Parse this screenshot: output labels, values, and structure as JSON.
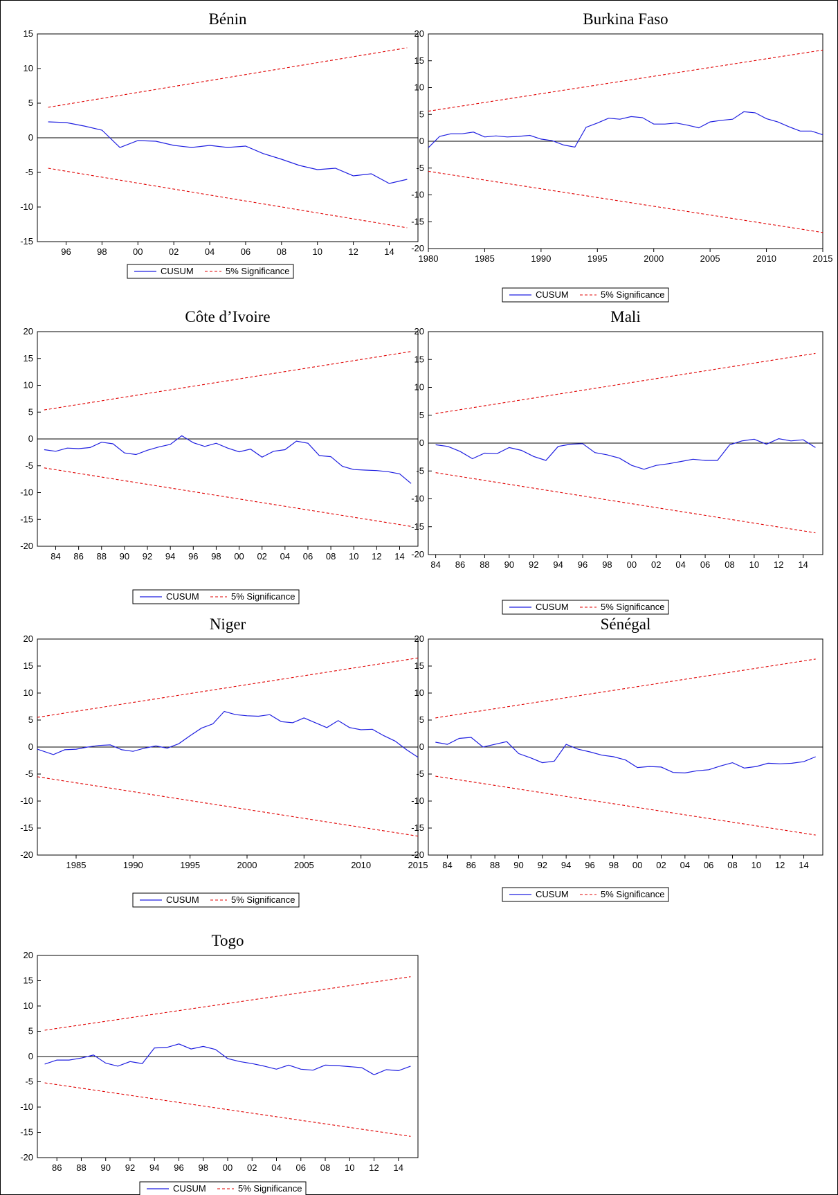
{
  "chart_data": [
    {
      "type": "line",
      "title": "Bénin",
      "x_tick_labels": [
        "96",
        "98",
        "00",
        "02",
        "04",
        "06",
        "08",
        "10",
        "12",
        "14"
      ],
      "x_tick_years": [
        1996,
        1998,
        2000,
        2002,
        2004,
        2006,
        2008,
        2010,
        2012,
        2014
      ],
      "xlim": [
        1994.4,
        2015.6
      ],
      "ylim": [
        -15,
        15
      ],
      "yticks": [
        -15,
        -10,
        -5,
        0,
        5,
        10,
        15
      ],
      "legend": [
        "CUSUM",
        "5% Significance"
      ],
      "legend_position": "bottom-center",
      "series": [
        {
          "name": "CUSUM",
          "color": "#1f1fe0",
          "x": [
            1995,
            1996,
            1997,
            1998,
            1999,
            2000,
            2001,
            2002,
            2003,
            2004,
            2005,
            2006,
            2007,
            2008,
            2009,
            2010,
            2011,
            2012,
            2013,
            2014,
            2015
          ],
          "y": [
            2.3,
            2.2,
            1.7,
            1.1,
            -1.4,
            -0.4,
            -0.5,
            -1.1,
            -1.4,
            -1.1,
            -1.4,
            -1.2,
            -2.3,
            -3.1,
            -4.0,
            -4.6,
            -4.4,
            -5.5,
            -5.2,
            -6.6,
            -6.0
          ]
        },
        {
          "name": "5% Significance",
          "color": "#e00000",
          "x": [
            1995,
            2015
          ],
          "y": [
            4.4,
            13.0
          ]
        },
        {
          "name": "5% Significance",
          "color": "#e00000",
          "x": [
            1995,
            2015
          ],
          "y": [
            -4.4,
            -13.0
          ]
        }
      ]
    },
    {
      "type": "line",
      "title": "Burkina Faso",
      "x_tick_labels": [
        "1980",
        "1985",
        "1990",
        "1995",
        "2000",
        "2005",
        "2010",
        "2015"
      ],
      "x_tick_years": [
        1980,
        1985,
        1990,
        1995,
        2000,
        2005,
        2010,
        2015
      ],
      "xlim": [
        1980,
        2015
      ],
      "ylim": [
        -20,
        20
      ],
      "yticks": [
        -20,
        -15,
        -10,
        -5,
        0,
        5,
        10,
        15,
        20
      ],
      "legend": [
        "CUSUM",
        "5% Significance"
      ],
      "legend_position": "bottom-center",
      "series": [
        {
          "name": "CUSUM",
          "color": "#1f1fe0",
          "x": [
            1980,
            1981,
            1982,
            1983,
            1984,
            1985,
            1986,
            1987,
            1988,
            1989,
            1990,
            1991,
            1992,
            1993,
            1994,
            1995,
            1996,
            1997,
            1998,
            1999,
            2000,
            2001,
            2002,
            2003,
            2004,
            2005,
            2006,
            2007,
            2008,
            2009,
            2010,
            2011,
            2012,
            2013,
            2014,
            2015
          ],
          "y": [
            -1.2,
            0.9,
            1.4,
            1.4,
            1.7,
            0.8,
            1.0,
            0.8,
            0.9,
            1.1,
            0.4,
            0.1,
            -0.7,
            -1.1,
            2.6,
            3.4,
            4.3,
            4.1,
            4.6,
            4.4,
            3.2,
            3.2,
            3.4,
            3.0,
            2.5,
            3.6,
            3.9,
            4.1,
            5.5,
            5.3,
            4.2,
            3.6,
            2.7,
            1.9,
            1.9,
            1.2
          ]
        },
        {
          "name": "5% Significance",
          "color": "#e00000",
          "x": [
            1980,
            2015
          ],
          "y": [
            5.6,
            17.0
          ]
        },
        {
          "name": "5% Significance",
          "color": "#e00000",
          "x": [
            1980,
            2015
          ],
          "y": [
            -5.6,
            -17.0
          ]
        }
      ]
    },
    {
      "type": "line",
      "title": "Côte d’Ivoire",
      "x_tick_labels": [
        "84",
        "86",
        "88",
        "90",
        "92",
        "94",
        "96",
        "98",
        "00",
        "02",
        "04",
        "06",
        "08",
        "10",
        "12",
        "14"
      ],
      "x_tick_years": [
        1984,
        1986,
        1988,
        1990,
        1992,
        1994,
        1996,
        1998,
        2000,
        2002,
        2004,
        2006,
        2008,
        2010,
        2012,
        2014
      ],
      "xlim": [
        1982.4,
        2015.6
      ],
      "ylim": [
        -20,
        20
      ],
      "yticks": [
        -20,
        -15,
        -10,
        -5,
        0,
        5,
        10,
        15,
        20
      ],
      "legend": [
        "CUSUM",
        "5% Significance"
      ],
      "legend_position": "bottom-center",
      "series": [
        {
          "name": "CUSUM",
          "color": "#1f1fe0",
          "x": [
            1983,
            1984,
            1985,
            1986,
            1987,
            1988,
            1989,
            1990,
            1991,
            1992,
            1993,
            1994,
            1995,
            1996,
            1997,
            1998,
            1999,
            2000,
            2001,
            2002,
            2003,
            2004,
            2005,
            2006,
            2007,
            2008,
            2009,
            2010,
            2011,
            2012,
            2013,
            2014,
            2015
          ],
          "y": [
            -2.0,
            -2.3,
            -1.7,
            -1.8,
            -1.6,
            -0.6,
            -0.9,
            -2.6,
            -2.9,
            -2.1,
            -1.5,
            -1.0,
            0.6,
            -0.7,
            -1.4,
            -0.8,
            -1.7,
            -2.4,
            -1.9,
            -3.4,
            -2.3,
            -2.0,
            -0.4,
            -0.8,
            -3.1,
            -3.3,
            -5.1,
            -5.7,
            -5.8,
            -5.9,
            -6.1,
            -6.5,
            -8.3
          ]
        },
        {
          "name": "5% Significance",
          "color": "#e00000",
          "x": [
            1983,
            2015
          ],
          "y": [
            5.4,
            16.3
          ]
        },
        {
          "name": "5% Significance",
          "color": "#e00000",
          "x": [
            1983,
            2015
          ],
          "y": [
            -5.4,
            -16.3
          ]
        }
      ]
    },
    {
      "type": "line",
      "title": "Mali",
      "x_tick_labels": [
        "84",
        "86",
        "88",
        "90",
        "92",
        "94",
        "96",
        "98",
        "00",
        "02",
        "04",
        "06",
        "08",
        "10",
        "12",
        "14"
      ],
      "x_tick_years": [
        1984,
        1986,
        1988,
        1990,
        1992,
        1994,
        1996,
        1998,
        2000,
        2002,
        2004,
        2006,
        2008,
        2010,
        2012,
        2014
      ],
      "xlim": [
        1983.4,
        2015.6
      ],
      "ylim": [
        -20,
        20
      ],
      "yticks": [
        -20,
        -15,
        -10,
        -5,
        0,
        5,
        10,
        15,
        20
      ],
      "legend": [
        "CUSUM",
        "5% Significance"
      ],
      "legend_position": "bottom-center",
      "series": [
        {
          "name": "CUSUM",
          "color": "#1f1fe0",
          "x": [
            1984,
            1985,
            1986,
            1987,
            1988,
            1989,
            1990,
            1991,
            1992,
            1993,
            1994,
            1995,
            1996,
            1997,
            1998,
            1999,
            2000,
            2001,
            2002,
            2003,
            2004,
            2005,
            2006,
            2007,
            2008,
            2009,
            2010,
            2011,
            2012,
            2013,
            2014,
            2015
          ],
          "y": [
            -0.3,
            -0.6,
            -1.5,
            -2.8,
            -1.8,
            -1.9,
            -0.8,
            -1.3,
            -2.4,
            -3.1,
            -0.6,
            -0.2,
            -0.1,
            -1.7,
            -2.1,
            -2.7,
            -4.0,
            -4.7,
            -4.0,
            -3.7,
            -3.3,
            -2.9,
            -3.1,
            -3.1,
            -0.3,
            0.4,
            0.7,
            -0.2,
            0.8,
            0.4,
            0.6,
            -0.8
          ]
        },
        {
          "name": "5% Significance",
          "color": "#e00000",
          "x": [
            1984,
            2015
          ],
          "y": [
            5.3,
            16.1
          ]
        },
        {
          "name": "5% Significance",
          "color": "#e00000",
          "x": [
            1984,
            2015
          ],
          "y": [
            -5.3,
            -16.1
          ]
        }
      ]
    },
    {
      "type": "line",
      "title": "Niger",
      "x_tick_labels": [
        "1985",
        "1990",
        "1995",
        "2000",
        "2005",
        "2010",
        "2015"
      ],
      "x_tick_years": [
        1985,
        1990,
        1995,
        2000,
        2005,
        2010,
        2015
      ],
      "xlim": [
        1981.6,
        2015
      ],
      "ylim": [
        -20,
        20
      ],
      "yticks": [
        -20,
        -15,
        -10,
        -5,
        0,
        5,
        10,
        15,
        20
      ],
      "legend": [
        "CUSUM",
        "5% Significance"
      ],
      "legend_position": "bottom-center",
      "series": [
        {
          "name": "CUSUM",
          "color": "#1f1fe0",
          "x": [
            1981.6,
            1983,
            1984,
            1985,
            1986,
            1987,
            1988,
            1989,
            1990,
            1991,
            1992,
            1993,
            1994,
            1995,
            1996,
            1997,
            1998,
            1999,
            2000,
            2001,
            2002,
            2003,
            2004,
            2005,
            2006,
            2007,
            2008,
            2009,
            2010,
            2011,
            2012,
            2013,
            2014,
            2015
          ],
          "y": [
            -0.4,
            -1.4,
            -0.5,
            -0.4,
            0.0,
            0.3,
            0.4,
            -0.5,
            -0.8,
            -0.2,
            0.2,
            -0.2,
            0.6,
            2.1,
            3.5,
            4.3,
            6.6,
            6.0,
            5.8,
            5.7,
            6.0,
            4.7,
            4.5,
            5.4,
            4.5,
            3.6,
            4.9,
            3.6,
            3.2,
            3.3,
            2.1,
            1.1,
            -0.5,
            -1.9
          ]
        },
        {
          "name": "5% Significance",
          "color": "#e00000",
          "x": [
            1981.6,
            2015
          ],
          "y": [
            5.5,
            16.5
          ]
        },
        {
          "name": "5% Significance",
          "color": "#e00000",
          "x": [
            1981.6,
            2015
          ],
          "y": [
            -5.5,
            -16.5
          ]
        }
      ]
    },
    {
      "type": "line",
      "title": "Sénégal",
      "x_tick_labels": [
        "84",
        "86",
        "88",
        "90",
        "92",
        "94",
        "96",
        "98",
        "00",
        "02",
        "04",
        "06",
        "08",
        "10",
        "12",
        "14"
      ],
      "x_tick_years": [
        1984,
        1986,
        1988,
        1990,
        1992,
        1994,
        1996,
        1998,
        2000,
        2002,
        2004,
        2006,
        2008,
        2010,
        2012,
        2014
      ],
      "xlim": [
        1982.4,
        2015.6
      ],
      "ylim": [
        -20,
        20
      ],
      "yticks": [
        -20,
        -15,
        -10,
        -5,
        0,
        5,
        10,
        15,
        20
      ],
      "legend": [
        "CUSUM",
        "5% Significance"
      ],
      "legend_position": "bottom-center",
      "series": [
        {
          "name": "CUSUM",
          "color": "#1f1fe0",
          "x": [
            1983,
            1984,
            1985,
            1986,
            1987,
            1988,
            1989,
            1990,
            1991,
            1992,
            1993,
            1994,
            1995,
            1996,
            1997,
            1998,
            1999,
            2000,
            2001,
            2002,
            2003,
            2004,
            2005,
            2006,
            2007,
            2008,
            2009,
            2010,
            2011,
            2012,
            2013,
            2014,
            2015
          ],
          "y": [
            0.9,
            0.5,
            1.6,
            1.8,
            0.0,
            0.5,
            1.0,
            -1.2,
            -2.0,
            -2.9,
            -2.6,
            0.5,
            -0.4,
            -0.9,
            -1.5,
            -1.8,
            -2.4,
            -3.8,
            -3.6,
            -3.7,
            -4.7,
            -4.8,
            -4.4,
            -4.2,
            -3.5,
            -2.9,
            -3.9,
            -3.6,
            -3.0,
            -3.1,
            -3.0,
            -2.7,
            -1.8
          ]
        },
        {
          "name": "5% Significance",
          "color": "#e00000",
          "x": [
            1983,
            2015
          ],
          "y": [
            5.4,
            16.3
          ]
        },
        {
          "name": "5% Significance",
          "color": "#e00000",
          "x": [
            1983,
            2015
          ],
          "y": [
            -5.4,
            -16.3
          ]
        }
      ]
    },
    {
      "type": "line",
      "title": "Togo",
      "x_tick_labels": [
        "86",
        "88",
        "90",
        "92",
        "94",
        "96",
        "98",
        "00",
        "02",
        "04",
        "06",
        "08",
        "10",
        "12",
        "14"
      ],
      "x_tick_years": [
        1986,
        1988,
        1990,
        1992,
        1994,
        1996,
        1998,
        2000,
        2002,
        2004,
        2006,
        2008,
        2010,
        2012,
        2014
      ],
      "xlim": [
        1984.4,
        2015.6
      ],
      "ylim": [
        -20,
        20
      ],
      "yticks": [
        -20,
        -15,
        -10,
        -5,
        0,
        5,
        10,
        15,
        20
      ],
      "legend": [
        "CUSUM",
        "5% Significance"
      ],
      "legend_position": "bottom-center",
      "series": [
        {
          "name": "CUSUM",
          "color": "#1f1fe0",
          "x": [
            1985,
            1986,
            1987,
            1988,
            1989,
            1990,
            1991,
            1992,
            1993,
            1994,
            1995,
            1996,
            1997,
            1998,
            1999,
            2000,
            2001,
            2002,
            2003,
            2004,
            2005,
            2006,
            2007,
            2008,
            2009,
            2010,
            2011,
            2012,
            2013,
            2014,
            2015
          ],
          "y": [
            -1.5,
            -0.7,
            -0.7,
            -0.3,
            0.3,
            -1.3,
            -1.9,
            -1.0,
            -1.4,
            1.7,
            1.8,
            2.5,
            1.5,
            2.0,
            1.4,
            -0.4,
            -1.0,
            -1.4,
            -1.9,
            -2.5,
            -1.7,
            -2.5,
            -2.7,
            -1.7,
            -1.8,
            -2.0,
            -2.2,
            -3.6,
            -2.6,
            -2.8,
            -1.9
          ]
        },
        {
          "name": "5% Significance",
          "color": "#e00000",
          "x": [
            1985,
            2015
          ],
          "y": [
            5.2,
            15.8
          ]
        },
        {
          "name": "5% Significance",
          "color": "#e00000",
          "x": [
            1985,
            2015
          ],
          "y": [
            -5.2,
            -15.8
          ]
        }
      ]
    }
  ]
}
